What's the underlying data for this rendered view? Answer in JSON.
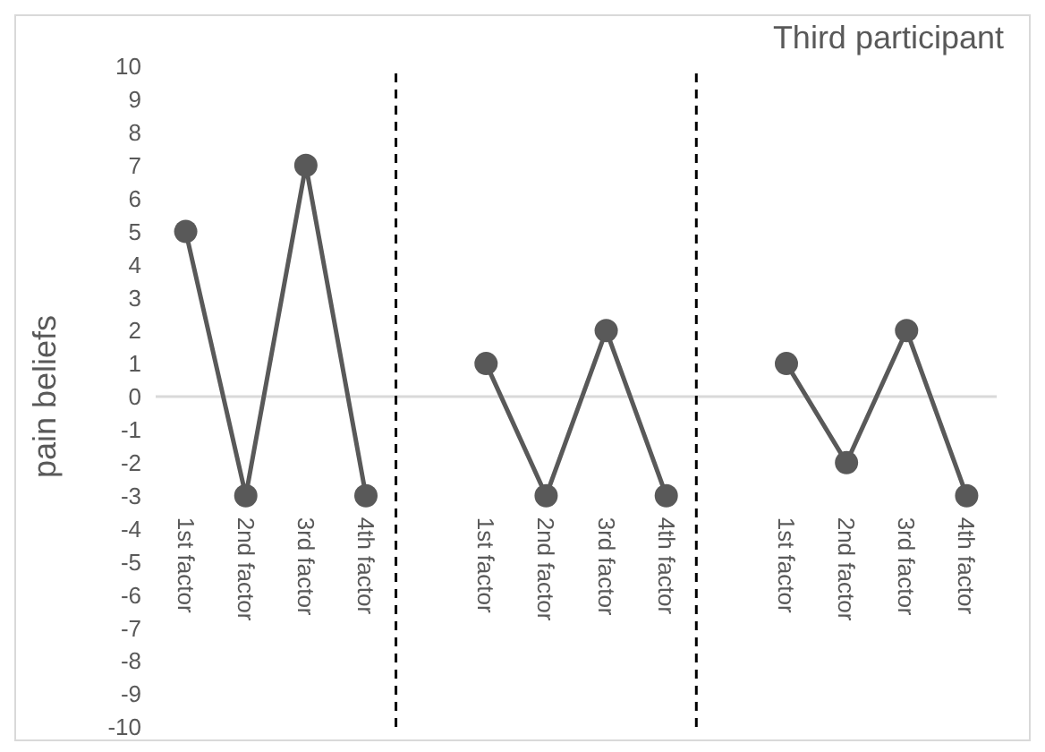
{
  "chart_data": {
    "type": "line",
    "title": "Third participant",
    "ylabel": "pain beliefs",
    "categories": [
      "1st factor",
      "2nd factor",
      "3rd factor",
      "4th factor",
      null,
      "1st factor",
      "2nd factor",
      "3rd factor",
      "4th factor",
      null,
      "1st factor",
      "2nd factor",
      "3rd factor",
      "4th factor"
    ],
    "series": [
      {
        "color": "#595959",
        "values": [
          5,
          -3,
          7,
          -3,
          null,
          1,
          -3,
          2,
          -3,
          null,
          1,
          -2,
          2,
          -3
        ]
      }
    ],
    "ylim": [
      -10,
      10
    ],
    "yticks": [
      -10,
      -9,
      -8,
      -7,
      -6,
      -5,
      -4,
      -3,
      -2,
      -1,
      0,
      1,
      2,
      3,
      4,
      5,
      6,
      7,
      8,
      9,
      10
    ],
    "marker": "circle",
    "line_style": "solid",
    "grid": false
  }
}
